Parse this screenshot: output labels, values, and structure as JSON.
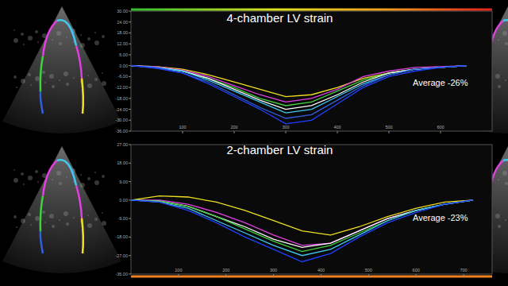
{
  "chart_data": [
    {
      "type": "line",
      "title": "4-chamber LV strain",
      "annotation": "Average -26%",
      "x": [
        0,
        50,
        100,
        150,
        200,
        250,
        300,
        350,
        400,
        450,
        500,
        550,
        600,
        650
      ],
      "xlim": [
        0,
        700
      ],
      "xticks": [
        100,
        200,
        300,
        400,
        500,
        600
      ],
      "ylim": [
        -36,
        30
      ],
      "yticks": [
        {
          "value": 30,
          "label": "30.00"
        },
        {
          "value": 24,
          "label": "24.00"
        },
        {
          "value": 18,
          "label": "18.00"
        },
        {
          "value": 12,
          "label": "12.00"
        },
        {
          "value": 6,
          "label": "6.00"
        },
        {
          "value": 0,
          "label": "0.00"
        },
        {
          "value": -6,
          "label": "-6.00"
        },
        {
          "value": -12,
          "label": "-12.00"
        },
        {
          "value": -18,
          "label": "-18.00"
        },
        {
          "value": -24,
          "label": "-24.00"
        },
        {
          "value": -30,
          "label": "-30.00"
        },
        {
          "value": -36,
          "label": "-36.00"
        }
      ],
      "grid": false,
      "series": [
        {
          "color": "#f0e020",
          "values": [
            0,
            -0.5,
            -2,
            -5,
            -9,
            -13,
            -17,
            -16,
            -12,
            -7,
            -4,
            -2,
            -1,
            0
          ]
        },
        {
          "color": "#e040e0",
          "values": [
            0,
            -0.5,
            -2.5,
            -6,
            -11,
            -16,
            -20,
            -18,
            -13,
            -6,
            -3,
            -1,
            -0.5,
            0
          ]
        },
        {
          "color": "#40d040",
          "values": [
            0,
            -1,
            -3,
            -7,
            -12,
            -18,
            -22,
            -20,
            -14,
            -8,
            -4,
            -2,
            -1,
            0
          ]
        },
        {
          "color": "#ffffff",
          "values": [
            0,
            -1,
            -3,
            -7,
            -13,
            -19,
            -24,
            -22,
            -16,
            -9,
            -4,
            -2,
            -1,
            0
          ]
        },
        {
          "color": "#40c8f0",
          "values": [
            0,
            -1,
            -3,
            -8,
            -14,
            -20,
            -26,
            -24,
            -17,
            -10,
            -5,
            -2,
            -1,
            0
          ]
        },
        {
          "color": "#3060e0",
          "values": [
            0,
            -1,
            -4,
            -9,
            -16,
            -23,
            -29,
            -27,
            -19,
            -11,
            -5,
            -2,
            -1,
            0
          ]
        },
        {
          "color": "#2040ff",
          "values": [
            0,
            -1.5,
            -4,
            -10,
            -17,
            -24,
            -32,
            -30,
            -21,
            -12,
            -6,
            -3,
            -1,
            0
          ]
        }
      ]
    },
    {
      "type": "line",
      "title": "2-chamber LV strain",
      "annotation": "Average -23%",
      "x": [
        0,
        60,
        120,
        180,
        240,
        300,
        360,
        420,
        480,
        540,
        600,
        660,
        720
      ],
      "xlim": [
        0,
        760
      ],
      "xticks": [
        100,
        200,
        300,
        400,
        500,
        600,
        700
      ],
      "ylim": [
        -36,
        27
      ],
      "yticks": [
        {
          "value": 27,
          "label": "27.00"
        },
        {
          "value": 18,
          "label": "18.00"
        },
        {
          "value": 9,
          "label": "9.00"
        },
        {
          "value": 0,
          "label": "0.00"
        },
        {
          "value": -9,
          "label": "-9.00"
        },
        {
          "value": -18,
          "label": "-18.00"
        },
        {
          "value": -27,
          "label": "-27.00"
        },
        {
          "value": -36,
          "label": "-36.00"
        }
      ],
      "grid": false,
      "series": [
        {
          "color": "#f0e020",
          "values": [
            0,
            2,
            1.5,
            -1,
            -5,
            -10,
            -15,
            -17,
            -13,
            -8,
            -4,
            -1,
            0
          ]
        },
        {
          "color": "#e040e0",
          "values": [
            0,
            0,
            -2,
            -6,
            -11,
            -17,
            -22,
            -21,
            -15,
            -9,
            -5,
            -2,
            0
          ]
        },
        {
          "color": "#ffffff",
          "values": [
            0,
            -0.5,
            -3,
            -8,
            -13,
            -19,
            -23,
            -21,
            -15,
            -9,
            -5,
            -2,
            0
          ]
        },
        {
          "color": "#40d040",
          "values": [
            0,
            -0.5,
            -3,
            -8,
            -14,
            -20,
            -25,
            -22,
            -16,
            -10,
            -5,
            -2,
            0
          ]
        },
        {
          "color": "#40c8f0",
          "values": [
            0,
            -1,
            -4,
            -10,
            -16,
            -22,
            -27,
            -24,
            -17,
            -10,
            -5,
            -2,
            0
          ]
        },
        {
          "color": "#2040ff",
          "values": [
            0,
            -1,
            -5,
            -11,
            -18,
            -24,
            -30,
            -26,
            -18,
            -11,
            -6,
            -2,
            0
          ]
        }
      ]
    }
  ]
}
